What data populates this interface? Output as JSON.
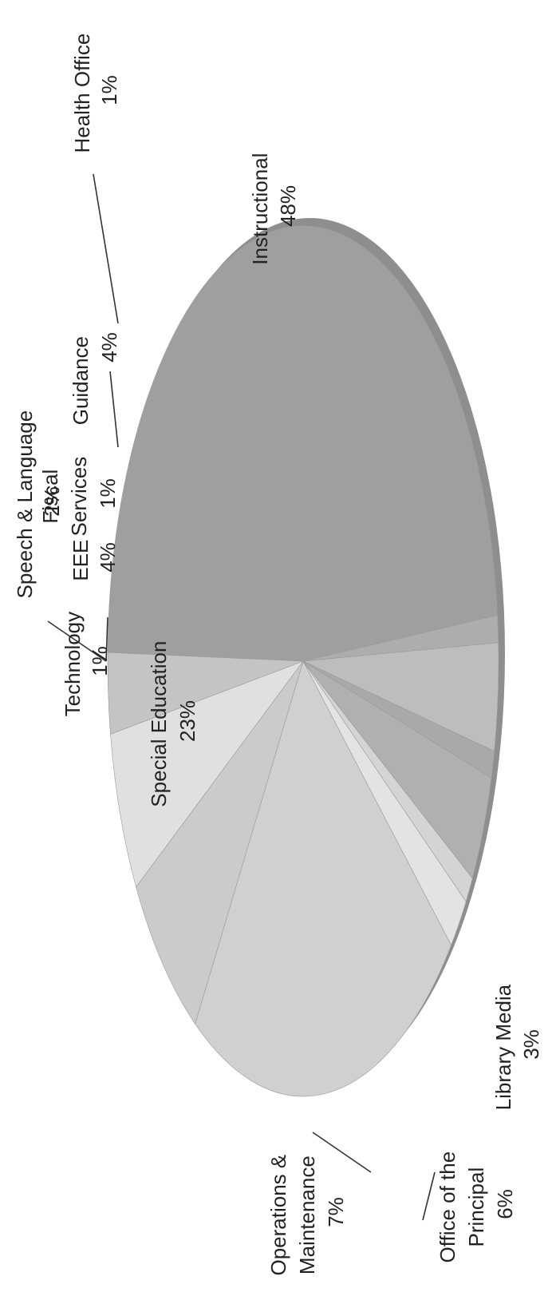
{
  "chart_data": {
    "type": "pie",
    "title": "",
    "orientation": "rotated-90-ccw",
    "style": "3d-grayscale",
    "slices": [
      {
        "label": "Instructional",
        "value": 48,
        "pct": "48%",
        "color": "#9f9f9f"
      },
      {
        "label": "Health Office",
        "value": 1,
        "pct": "1%",
        "color": "#adadad"
      },
      {
        "label": "Guidance",
        "value": 4,
        "pct": "4%",
        "color": "#bdbdbd"
      },
      {
        "label": "Fiscal Services",
        "value": 1,
        "pct": "1%",
        "color": "#a9a9a9"
      },
      {
        "label": "EEE",
        "value": 4,
        "pct": "4%",
        "color": "#b0b0b0"
      },
      {
        "label": "Technology",
        "value": 1,
        "pct": "1%",
        "color": "#d4d4d4"
      },
      {
        "label": "Speech & Language",
        "value": 2,
        "pct": "2%",
        "color": "#e3e3e3"
      },
      {
        "label": "Special Education",
        "value": 23,
        "pct": "23%",
        "color": "#d0d0d0"
      },
      {
        "label": "Operations & Maintenance",
        "value": 7,
        "pct": "7%",
        "color": "#cbcbcb"
      },
      {
        "label": "Office of the Principal",
        "value": 6,
        "pct": "6%",
        "color": "#e0e0e0"
      },
      {
        "label": "Library Media",
        "value": 3,
        "pct": "3%",
        "color": "#c4c4c4"
      }
    ]
  },
  "labels": {
    "instructional": {
      "l1": "Instructional",
      "l2": "48%"
    },
    "health": {
      "l1": "Health Office",
      "l2": "1%"
    },
    "guidance": {
      "l1": "Guidance",
      "l2": "4%"
    },
    "fiscal": {
      "l1": "Fiscal",
      "l2": "Services",
      "l3": "1%"
    },
    "eee": {
      "l1": "EEE",
      "l2": "4%"
    },
    "technology": {
      "l1": "Technology",
      "l2": "1%"
    },
    "speech": {
      "l1": "Speech & Language",
      "l2": "2%"
    },
    "special": {
      "l1": "Special Education",
      "l2": "23%"
    },
    "operations": {
      "l1": "Operations &",
      "l2": "Maintenance",
      "l3": "7%"
    },
    "principal": {
      "l1": "Office of the",
      "l2": "Principal",
      "l3": "6%"
    },
    "library": {
      "l1": "Library Media",
      "l2": "3%"
    }
  }
}
